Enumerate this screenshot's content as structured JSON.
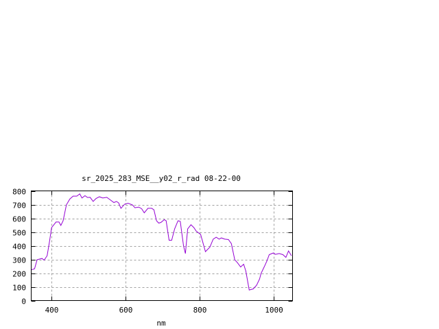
{
  "chart_data": {
    "type": "line",
    "title": "sr_2025_283_MSE__y02_r_rad 08-22-00",
    "xlabel": "nm",
    "ylabel": "",
    "xlim": [
      345,
      1050
    ],
    "ylim": [
      0,
      800
    ],
    "xticks": [
      400,
      600,
      800,
      1000
    ],
    "yticks": [
      0,
      100,
      200,
      300,
      400,
      500,
      600,
      700,
      800
    ],
    "grid": true,
    "series_color": "#9400d3",
    "series": [
      {
        "x": [
          345,
          354,
          361,
          374,
          380,
          388,
          394,
          400,
          412,
          420,
          425,
          431,
          440,
          449,
          458,
          468,
          476,
          482,
          490,
          497,
          504,
          512,
          520,
          529,
          538,
          549,
          557,
          568,
          575,
          581,
          587,
          597,
          606,
          618,
          625,
          635,
          643,
          650,
          660,
          670,
          676,
          683,
          689,
          695,
          704,
          709,
          717,
          724,
          732,
          741,
          747,
          753,
          756,
          761,
          767,
          776,
          784,
          790,
          802,
          815,
          827,
          836,
          844,
          852,
          858,
          867,
          877,
          885,
          894,
          901,
          910,
          918,
          924,
          933,
          944,
          953,
          961,
          965,
          974,
          981,
          987,
          998,
          1004,
          1014,
          1024,
          1032,
          1039,
          1047
        ],
        "y": [
          224,
          232,
          298,
          307,
          295,
          327,
          425,
          532,
          573,
          573,
          548,
          582,
          698,
          740,
          762,
          762,
          778,
          748,
          765,
          752,
          753,
          723,
          745,
          757,
          748,
          753,
          737,
          715,
          723,
          712,
          673,
          703,
          710,
          698,
          677,
          682,
          670,
          640,
          673,
          673,
          662,
          582,
          565,
          570,
          590,
          582,
          440,
          440,
          523,
          582,
          578,
          457,
          398,
          343,
          523,
          553,
          532,
          507,
          482,
          357,
          390,
          448,
          462,
          448,
          457,
          448,
          445,
          415,
          298,
          277,
          245,
          265,
          215,
          77,
          85,
          112,
          157,
          198,
          248,
          290,
          335,
          347,
          337,
          343,
          335,
          315,
          362,
          327
        ]
      }
    ]
  }
}
